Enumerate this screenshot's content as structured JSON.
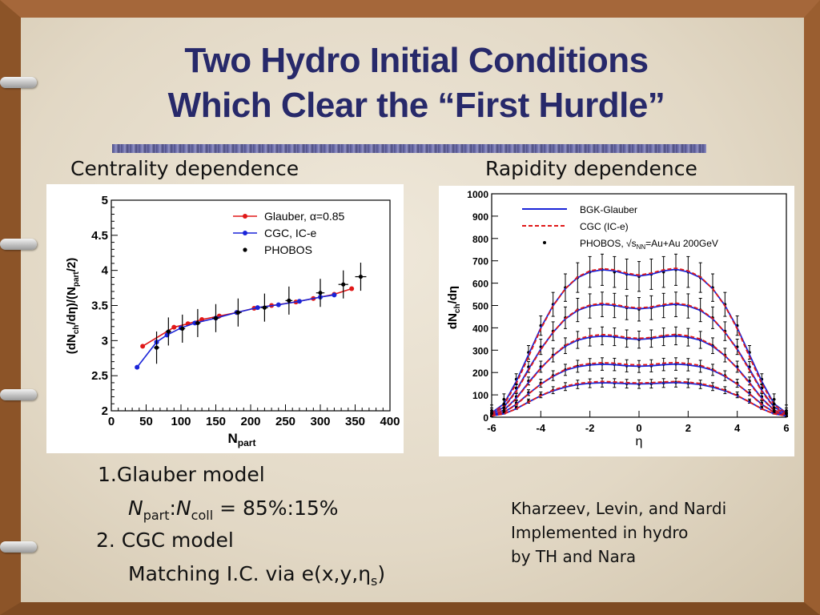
{
  "title": {
    "line1": "Two Hydro Initial Conditions",
    "line2": "Which Clear the “First Hurdle”"
  },
  "subtitles": {
    "left": "Centrality dependence",
    "right": "Rapidity dependence"
  },
  "body": {
    "item1": "1.Glauber model",
    "item1_detail_a": "N",
    "item1_detail_a_sub": "part",
    "item1_detail_sep": ":",
    "item1_detail_b": "N",
    "item1_detail_b_sub": "coll",
    "item1_detail_value": " = 85%:15%",
    "item2": "2. CGC model",
    "item2_detail": "Matching I.C. via e(x,y,",
    "item2_detail_eta": "η",
    "item2_detail_eta_sub": "s",
    "item2_detail_close": ")"
  },
  "credit": {
    "line1": "Kharzeev, Levin, and Nardi",
    "line2": "Implemented in hydro",
    "line3": "by TH and Nara"
  },
  "colors": {
    "title": "#27296a",
    "glauber": "#e01818",
    "cgc": "#1a24d8",
    "data": "#000000"
  },
  "chart_data": [
    {
      "type": "line",
      "xlabel": "N",
      "xlabel_sub": "part",
      "ylabel": "(dN",
      "ylabel_sub1": "ch",
      "ylabel_mid": "/dη)/(N",
      "ylabel_sub2": "part",
      "ylabel_end": "/2)",
      "xlim": [
        0,
        400
      ],
      "ylim": [
        2,
        5
      ],
      "xticks": [
        "0",
        "50",
        "100",
        "150",
        "200",
        "250",
        "300",
        "350",
        "400"
      ],
      "yticks": [
        "2",
        "2.5",
        "3",
        "3.5",
        "4",
        "4.5",
        "5"
      ],
      "legend_position": "top-right",
      "series": [
        {
          "name": "Glauber, α=0.85",
          "style": "line-dots",
          "color": "#e01818",
          "x": [
            45,
            90,
            110,
            130,
            155,
            180,
            205,
            230,
            265,
            290,
            320,
            345
          ],
          "y": [
            2.92,
            3.19,
            3.24,
            3.3,
            3.35,
            3.4,
            3.46,
            3.5,
            3.55,
            3.6,
            3.66,
            3.74
          ]
        },
        {
          "name": "CGC, IC-e",
          "style": "line-dots",
          "color": "#1a24d8",
          "x": [
            37,
            65,
            80,
            100,
            120,
            150,
            180,
            210,
            240,
            270,
            300,
            320
          ],
          "y": [
            2.62,
            2.98,
            3.08,
            3.18,
            3.25,
            3.32,
            3.4,
            3.47,
            3.51,
            3.56,
            3.62,
            3.65
          ]
        },
        {
          "name": "PHOBOS",
          "style": "points-errors",
          "color": "#000000",
          "x": [
            65,
            82,
            102,
            124,
            150,
            182,
            220,
            255,
            300,
            333,
            358
          ],
          "y": [
            2.9,
            3.13,
            3.17,
            3.25,
            3.32,
            3.4,
            3.47,
            3.57,
            3.68,
            3.8,
            3.91
          ],
          "err": [
            0.23,
            0.2,
            0.2,
            0.2,
            0.2,
            0.2,
            0.2,
            0.2,
            0.2,
            0.2,
            0.2
          ],
          "xerr": [
            4,
            4,
            4,
            4,
            5,
            5,
            5,
            5,
            6,
            7,
            8
          ]
        }
      ]
    },
    {
      "type": "line",
      "xlabel": "η",
      "ylabel": "dN",
      "ylabel_sub": "ch",
      "ylabel_end": "/dη",
      "xlim": [
        -6,
        6
      ],
      "ylim": [
        0,
        1000
      ],
      "xticks": [
        "-6",
        "-4",
        "-2",
        "0",
        "2",
        "4",
        "6"
      ],
      "yticks": [
        "0",
        "100",
        "200",
        "300",
        "400",
        "500",
        "600",
        "700",
        "800",
        "900",
        "1000"
      ],
      "legend_position": "top",
      "legend": [
        {
          "label": "BGK-Glauber",
          "style": "solid",
          "color": "#1a24d8"
        },
        {
          "label": "CGC (IC-e)",
          "style": "dashed",
          "color": "#e01818"
        },
        {
          "label": "PHOBOS, ",
          "label_sqrt": "s",
          "label_sqrt_sub": "NN",
          "label_end": "=Au+Au 200GeV",
          "style": "point",
          "color": "#000000"
        }
      ],
      "centralities": [
        {
          "x": [
            -6,
            -5.5,
            -5,
            -4.5,
            -4,
            -3.5,
            -3,
            -2.5,
            -2,
            -1.5,
            -1,
            -0.5,
            0,
            0.5,
            1,
            1.5,
            2,
            2.5,
            3,
            3.5,
            4,
            4.5,
            5,
            5.5,
            6
          ],
          "blue": [
            20,
            60,
            160,
            280,
            400,
            500,
            575,
            625,
            650,
            660,
            655,
            640,
            632,
            640,
            655,
            662,
            650,
            625,
            575,
            500,
            400,
            280,
            160,
            60,
            20
          ],
          "red": [
            18,
            55,
            150,
            270,
            395,
            498,
            575,
            628,
            655,
            665,
            660,
            645,
            636,
            645,
            660,
            667,
            655,
            628,
            575,
            498,
            395,
            270,
            150,
            55,
            18
          ],
          "points": [
            30,
            80,
            170,
            290,
            410,
            505,
            580,
            625,
            650,
            660,
            650,
            640,
            630,
            640,
            650,
            660,
            650,
            625,
            580,
            505,
            410,
            290,
            170,
            80,
            30
          ]
        },
        {
          "x": [
            -6,
            -5.5,
            -5,
            -4.5,
            -4,
            -3.5,
            -3,
            -2.5,
            -2,
            -1.5,
            -1,
            -0.5,
            0,
            0.5,
            1,
            1.5,
            2,
            2.5,
            3,
            3.5,
            4,
            4.5,
            5,
            5.5,
            6
          ],
          "blue": [
            15,
            45,
            120,
            215,
            305,
            380,
            440,
            478,
            498,
            505,
            500,
            490,
            485,
            490,
            500,
            506,
            498,
            478,
            440,
            380,
            305,
            215,
            120,
            45,
            15
          ],
          "red": [
            14,
            42,
            115,
            210,
            302,
            380,
            442,
            482,
            502,
            510,
            505,
            494,
            489,
            494,
            505,
            511,
            502,
            482,
            442,
            380,
            302,
            210,
            115,
            42,
            14
          ],
          "points": [
            22,
            60,
            130,
            225,
            315,
            385,
            445,
            480,
            498,
            505,
            500,
            490,
            483,
            490,
            500,
            505,
            498,
            480,
            445,
            385,
            315,
            225,
            130,
            60,
            22
          ]
        },
        {
          "x": [
            -6,
            -5.5,
            -5,
            -4.5,
            -4,
            -3.5,
            -3,
            -2.5,
            -2,
            -1.5,
            -1,
            -0.5,
            0,
            0.5,
            1,
            1.5,
            2,
            2.5,
            3,
            3.5,
            4,
            4.5,
            5,
            5.5,
            6
          ],
          "blue": [
            10,
            32,
            85,
            155,
            220,
            275,
            318,
            345,
            358,
            363,
            360,
            352,
            348,
            352,
            360,
            364,
            358,
            345,
            318,
            275,
            220,
            155,
            85,
            32,
            10
          ],
          "red": [
            10,
            30,
            82,
            152,
            218,
            276,
            322,
            350,
            364,
            370,
            366,
            357,
            353,
            357,
            366,
            371,
            364,
            350,
            322,
            276,
            218,
            152,
            82,
            30,
            10
          ],
          "points": [
            16,
            42,
            92,
            162,
            226,
            278,
            320,
            346,
            358,
            364,
            360,
            352,
            347,
            352,
            360,
            364,
            358,
            346,
            320,
            278,
            226,
            162,
            92,
            42,
            16
          ]
        },
        {
          "x": [
            -6,
            -5.5,
            -5,
            -4.5,
            -4,
            -3.5,
            -3,
            -2.5,
            -2,
            -1.5,
            -1,
            -0.5,
            0,
            0.5,
            1,
            1.5,
            2,
            2.5,
            3,
            3.5,
            4,
            4.5,
            5,
            5.5,
            6
          ],
          "blue": [
            8,
            22,
            58,
            105,
            148,
            183,
            210,
            226,
            234,
            237,
            235,
            230,
            228,
            230,
            235,
            238,
            234,
            226,
            210,
            183,
            148,
            105,
            58,
            22,
            8
          ],
          "red": [
            8,
            21,
            56,
            104,
            148,
            185,
            214,
            232,
            240,
            244,
            242,
            236,
            234,
            236,
            242,
            245,
            240,
            232,
            214,
            185,
            148,
            104,
            56,
            21,
            8
          ],
          "points": [
            12,
            30,
            64,
            110,
            152,
            186,
            212,
            228,
            235,
            238,
            236,
            230,
            227,
            230,
            236,
            238,
            235,
            228,
            212,
            186,
            152,
            110,
            64,
            30,
            12
          ]
        },
        {
          "x": [
            -6,
            -5.5,
            -5,
            -4.5,
            -4,
            -3.5,
            -3,
            -2.5,
            -2,
            -1.5,
            -1,
            -0.5,
            0,
            0.5,
            1,
            1.5,
            2,
            2.5,
            3,
            3.5,
            4,
            4.5,
            5,
            5.5,
            6
          ],
          "blue": [
            6,
            15,
            38,
            68,
            96,
            118,
            135,
            146,
            152,
            154,
            153,
            150,
            149,
            150,
            153,
            155,
            152,
            146,
            135,
            118,
            96,
            68,
            38,
            15,
            6
          ],
          "red": [
            6,
            15,
            37,
            68,
            97,
            121,
            139,
            151,
            157,
            160,
            158,
            155,
            153,
            155,
            158,
            160,
            157,
            151,
            139,
            121,
            97,
            68,
            37,
            15,
            6
          ],
          "points": [
            9,
            21,
            42,
            72,
            100,
            121,
            137,
            147,
            152,
            155,
            153,
            150,
            148,
            150,
            153,
            155,
            152,
            147,
            137,
            121,
            100,
            72,
            42,
            21,
            9
          ]
        }
      ],
      "errors": [
        70,
        55,
        40,
        28,
        20
      ]
    }
  ]
}
